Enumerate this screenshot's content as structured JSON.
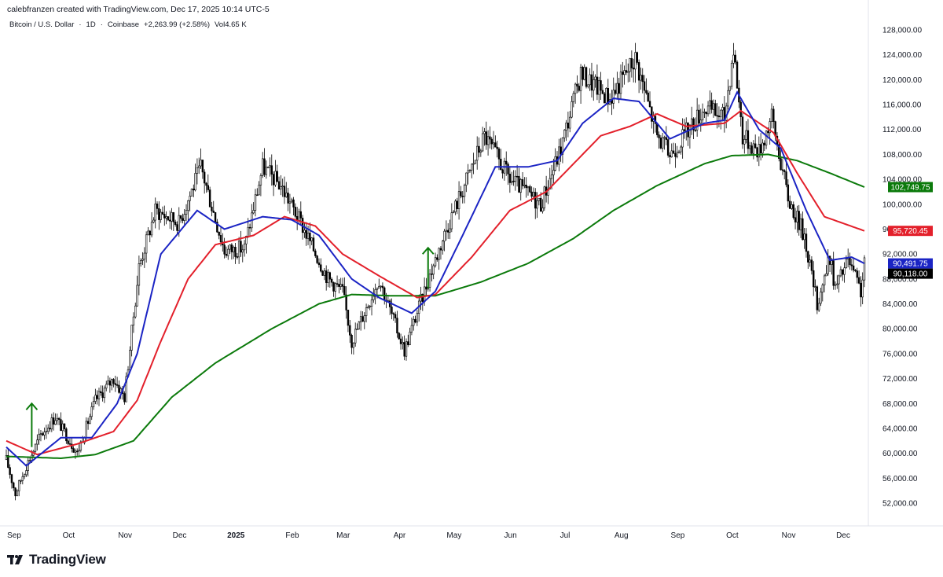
{
  "header": {
    "attribution": "calebfranzen created with TradingView.com, Dec 17, 2025 10:14 UTC-5",
    "symbol": "Bitcoin / U.S. Dollar",
    "interval": "1D",
    "exchange": "Coinbase",
    "change": "+2,263.99 (+2.58%)",
    "volume": "Vol4.65 K"
  },
  "brand": {
    "name": "TradingView",
    "logo_icon": "tradingview-logo-icon"
  },
  "colors": {
    "up_candle": "#000000",
    "ma_fast": "#1b24c4",
    "ma_mid": "#e3202b",
    "ma_slow": "#0b7a0b",
    "last_price": "#000000"
  },
  "chart_data": {
    "type": "candlestick",
    "title": "Bitcoin / U.S. Dollar · 1D · Coinbase",
    "ylim": [
      48000,
      130000
    ],
    "y_ticks": [
      "52,000.00",
      "56,000.00",
      "60,000.00",
      "64,000.00",
      "68,000.00",
      "72,000.00",
      "76,000.00",
      "80,000.00",
      "84,000.00",
      "88,000.00",
      "92,000.00",
      "96,000.00",
      "100,000.00",
      "104,000.00",
      "108,000.00",
      "112,000.00",
      "116,000.00",
      "120,000.00",
      "124,000.00",
      "128,000.00"
    ],
    "x_ticks": [
      "Sep",
      "Oct",
      "Nov",
      "Dec",
      "2025",
      "Feb",
      "Mar",
      "Apr",
      "May",
      "Jun",
      "Jul",
      "Aug",
      "Sep",
      "Oct",
      "Nov",
      "Dec"
    ],
    "x_range": [
      "2024-09-01",
      "2025-12-17"
    ],
    "price_keypoints": [
      [
        "2024-09-01",
        59000
      ],
      [
        "2024-09-06",
        53500
      ],
      [
        "2024-09-12",
        58000
      ],
      [
        "2024-09-20",
        63000
      ],
      [
        "2024-09-28",
        65800
      ],
      [
        "2024-10-10",
        60000
      ],
      [
        "2024-10-20",
        68500
      ],
      [
        "2024-10-30",
        72000
      ],
      [
        "2024-11-05",
        69000
      ],
      [
        "2024-11-13",
        90000
      ],
      [
        "2024-11-22",
        99000
      ],
      [
        "2024-12-05",
        97000
      ],
      [
        "2024-12-17",
        106000
      ],
      [
        "2024-12-30",
        92500
      ],
      [
        "2025-01-10",
        93000
      ],
      [
        "2025-01-20",
        106000
      ],
      [
        "2025-01-30",
        103000
      ],
      [
        "2025-02-10",
        97000
      ],
      [
        "2025-02-25",
        88000
      ],
      [
        "2025-03-05",
        86000
      ],
      [
        "2025-03-10",
        78000
      ],
      [
        "2025-03-25",
        88000
      ],
      [
        "2025-04-08",
        76500
      ],
      [
        "2025-04-20",
        87000
      ],
      [
        "2025-05-01",
        96000
      ],
      [
        "2025-05-22",
        111000
      ],
      [
        "2025-06-05",
        104000
      ],
      [
        "2025-06-22",
        100000
      ],
      [
        "2025-07-03",
        109000
      ],
      [
        "2025-07-14",
        121000
      ],
      [
        "2025-07-30",
        117000
      ],
      [
        "2025-08-13",
        123500
      ],
      [
        "2025-08-25",
        111000
      ],
      [
        "2025-09-01",
        108000
      ],
      [
        "2025-09-20",
        115500
      ],
      [
        "2025-10-01",
        114000
      ],
      [
        "2025-10-06",
        125000
      ],
      [
        "2025-10-11",
        111000
      ],
      [
        "2025-10-20",
        108500
      ],
      [
        "2025-10-27",
        114000
      ],
      [
        "2025-11-05",
        101000
      ],
      [
        "2025-11-14",
        95000
      ],
      [
        "2025-11-21",
        84000
      ],
      [
        "2025-11-28",
        91500
      ],
      [
        "2025-12-01",
        86500
      ],
      [
        "2025-12-08",
        91000
      ],
      [
        "2025-12-15",
        86000
      ],
      [
        "2025-12-17",
        90118
      ]
    ],
    "ma_fast_keypoints": [
      [
        "2024-09-01",
        61000
      ],
      [
        "2024-09-12",
        58000
      ],
      [
        "2024-10-01",
        62500
      ],
      [
        "2024-10-18",
        62500
      ],
      [
        "2024-11-01",
        68000
      ],
      [
        "2024-11-12",
        76000
      ],
      [
        "2024-11-25",
        92000
      ],
      [
        "2024-12-15",
        99000
      ],
      [
        "2024-12-30",
        96000
      ],
      [
        "2025-01-20",
        98000
      ],
      [
        "2025-02-05",
        97500
      ],
      [
        "2025-02-20",
        95000
      ],
      [
        "2025-03-10",
        88000
      ],
      [
        "2025-03-25",
        85000
      ],
      [
        "2025-04-12",
        82500
      ],
      [
        "2025-04-25",
        86000
      ],
      [
        "2025-05-10",
        95000
      ],
      [
        "2025-05-28",
        106000
      ],
      [
        "2025-06-15",
        106000
      ],
      [
        "2025-07-01",
        107000
      ],
      [
        "2025-07-15",
        113000
      ],
      [
        "2025-08-01",
        117000
      ],
      [
        "2025-08-15",
        116500
      ],
      [
        "2025-09-01",
        110500
      ],
      [
        "2025-09-20",
        113000
      ],
      [
        "2025-10-01",
        113500
      ],
      [
        "2025-10-08",
        118000
      ],
      [
        "2025-10-20",
        112000
      ],
      [
        "2025-11-01",
        109000
      ],
      [
        "2025-11-15",
        99000
      ],
      [
        "2025-11-28",
        91000
      ],
      [
        "2025-12-10",
        91500
      ],
      [
        "2025-12-17",
        90491.75
      ]
    ],
    "ma_mid_keypoints": [
      [
        "2024-09-01",
        62000
      ],
      [
        "2024-09-18",
        59800
      ],
      [
        "2024-10-10",
        61500
      ],
      [
        "2024-10-30",
        63500
      ],
      [
        "2024-11-12",
        68500
      ],
      [
        "2024-11-25",
        78000
      ],
      [
        "2024-12-10",
        88000
      ],
      [
        "2024-12-25",
        93500
      ],
      [
        "2025-01-15",
        95000
      ],
      [
        "2025-02-01",
        98000
      ],
      [
        "2025-02-18",
        96500
      ],
      [
        "2025-03-05",
        92000
      ],
      [
        "2025-03-25",
        88500
      ],
      [
        "2025-04-15",
        85000
      ],
      [
        "2025-04-25",
        85500
      ],
      [
        "2025-05-15",
        91500
      ],
      [
        "2025-06-05",
        99000
      ],
      [
        "2025-06-25",
        102000
      ],
      [
        "2025-07-10",
        106500
      ],
      [
        "2025-07-25",
        111000
      ],
      [
        "2025-08-10",
        112500
      ],
      [
        "2025-08-25",
        114500
      ],
      [
        "2025-09-10",
        112500
      ],
      [
        "2025-10-01",
        113000
      ],
      [
        "2025-10-10",
        115000
      ],
      [
        "2025-10-28",
        111500
      ],
      [
        "2025-11-10",
        105000
      ],
      [
        "2025-11-25",
        98000
      ],
      [
        "2025-12-17",
        95720.45
      ]
    ],
    "ma_slow_keypoints": [
      [
        "2024-09-01",
        59500
      ],
      [
        "2024-10-01",
        59200
      ],
      [
        "2024-10-20",
        59800
      ],
      [
        "2024-11-10",
        62000
      ],
      [
        "2024-12-01",
        69000
      ],
      [
        "2024-12-25",
        74500
      ],
      [
        "2025-01-25",
        80000
      ],
      [
        "2025-02-20",
        84000
      ],
      [
        "2025-03-10",
        85500
      ],
      [
        "2025-04-01",
        85300
      ],
      [
        "2025-04-25",
        85300
      ],
      [
        "2025-05-20",
        87500
      ],
      [
        "2025-06-15",
        90500
      ],
      [
        "2025-07-10",
        94500
      ],
      [
        "2025-08-01",
        99000
      ],
      [
        "2025-08-25",
        103000
      ],
      [
        "2025-09-20",
        106500
      ],
      [
        "2025-10-05",
        107800
      ],
      [
        "2025-10-25",
        108000
      ],
      [
        "2025-11-10",
        107000
      ],
      [
        "2025-11-28",
        105000
      ],
      [
        "2025-12-17",
        102749.75
      ]
    ],
    "price_labels": [
      {
        "text": "102,749.75",
        "value": 102749.75,
        "color": "#0b7a0b"
      },
      {
        "text": "95,720.45",
        "value": 95720.45,
        "color": "#e3202b"
      },
      {
        "text": "90,491.75",
        "value": 90491.75,
        "color": "#1b24c4"
      },
      {
        "text": "90,118.00",
        "value": 90118,
        "color": "#000000"
      }
    ],
    "annotations": [
      {
        "type": "up-arrow",
        "date": "2024-09-15",
        "from": 61000,
        "to": 68000,
        "color": "#0b7a0b"
      },
      {
        "type": "up-arrow",
        "date": "2025-04-21",
        "from": 86500,
        "to": 93000,
        "color": "#0b7a0b"
      }
    ]
  }
}
